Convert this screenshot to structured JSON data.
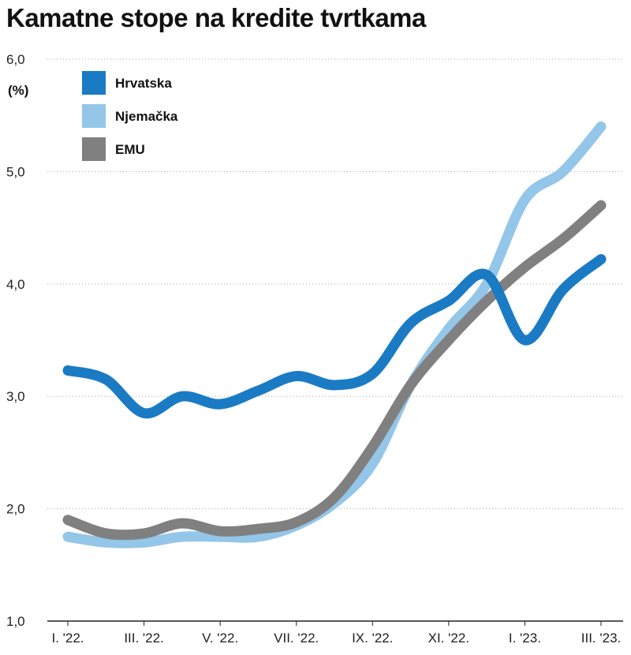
{
  "chart_data": {
    "type": "line",
    "title": "Kamatne stope na kredite tvrtkama",
    "ylabel": "(%)",
    "xlabel": "",
    "ylim": [
      1.0,
      6.0
    ],
    "yticks": [
      "1,0",
      "2,0",
      "3,0",
      "4,0",
      "5,0",
      "6,0"
    ],
    "ytick_values": [
      1,
      2,
      3,
      4,
      5,
      6
    ],
    "xtick_labels": [
      "I. '22.",
      "III. '22.",
      "V. '22.",
      "VII. '22.",
      "IX. '22.",
      "XI. '22.",
      "I. '23.",
      "III. '23."
    ],
    "xtick_index": [
      0,
      2,
      4,
      6,
      8,
      10,
      12,
      14
    ],
    "x_count": 15,
    "grid": "horizontal dotted",
    "legend_position": "top-left",
    "series": [
      {
        "name": "Hrvatska",
        "color": "#1a7bc4",
        "values": [
          3.23,
          3.15,
          2.85,
          3.0,
          2.93,
          3.05,
          3.18,
          3.1,
          3.2,
          3.65,
          3.85,
          4.08,
          3.5,
          3.95,
          4.22
        ]
      },
      {
        "name": "Njemačka",
        "color": "#93c6e8",
        "values": [
          1.75,
          1.7,
          1.7,
          1.75,
          1.75,
          1.75,
          1.85,
          2.05,
          2.4,
          3.1,
          3.6,
          4.0,
          4.75,
          5.0,
          5.4
        ]
      },
      {
        "name": "EMU",
        "color": "#808080",
        "values": [
          1.9,
          1.78,
          1.78,
          1.87,
          1.8,
          1.82,
          1.88,
          2.1,
          2.55,
          3.1,
          3.5,
          3.85,
          4.15,
          4.4,
          4.7
        ]
      }
    ]
  }
}
